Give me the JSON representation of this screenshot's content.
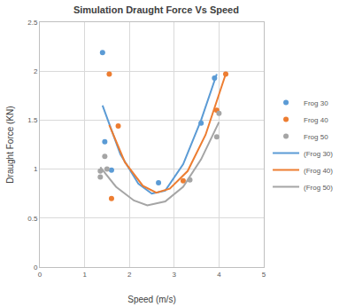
{
  "chart_data": {
    "type": "scatter",
    "title": "Simulation Draught Force Vs Speed",
    "x_label": "Speed (m/s)",
    "y_label": "Draught Force (KN)",
    "xlim": [
      0,
      5
    ],
    "xticks": [
      0,
      1,
      2,
      3,
      4,
      5
    ],
    "ylim": [
      0,
      2.5
    ],
    "yticks": [
      0,
      0.5,
      1,
      1.5,
      2,
      2.5
    ],
    "grid": true,
    "legend": "right",
    "series": [
      {
        "name": "Frog 30",
        "type": "scatter",
        "marker": "circle",
        "color": "#5b9bd5",
        "x": [
          1.4,
          1.45,
          1.6,
          2.65,
          3.6,
          3.9
        ],
        "values": [
          2.19,
          1.28,
          0.99,
          0.86,
          1.47,
          1.93
        ]
      },
      {
        "name": "Frog 40",
        "type": "scatter",
        "marker": "circle",
        "color": "#ed7d31",
        "x": [
          1.55,
          1.75,
          1.6,
          3.2,
          3.95,
          4.15
        ],
        "values": [
          1.97,
          1.44,
          0.7,
          0.88,
          1.6,
          1.97
        ]
      },
      {
        "name": "Frog 50",
        "type": "scatter",
        "marker": "circle",
        "color": "#a5a5a5",
        "x": [
          1.35,
          1.35,
          1.45,
          1.5,
          3.35,
          3.95,
          4.0
        ],
        "values": [
          0.92,
          0.98,
          1.13,
          1.0,
          0.89,
          1.33,
          1.57
        ]
      },
      {
        "name": "(Frog 30)",
        "type": "line",
        "line_style": "solid",
        "color": "#5b9bd5",
        "x": [
          1.4,
          1.8,
          2.2,
          2.5,
          2.8,
          3.2,
          3.6,
          3.95
        ],
        "values": [
          1.65,
          1.15,
          0.85,
          0.75,
          0.78,
          1.05,
          1.5,
          1.97
        ]
      },
      {
        "name": "(Frog 40)",
        "type": "line",
        "line_style": "solid",
        "color": "#ed7d31",
        "x": [
          1.55,
          1.9,
          2.3,
          2.6,
          2.9,
          3.3,
          3.7,
          4.15
        ],
        "values": [
          1.45,
          1.07,
          0.83,
          0.76,
          0.8,
          0.98,
          1.35,
          1.97
        ]
      },
      {
        "name": "(Frog 50)",
        "type": "line",
        "line_style": "solid",
        "color": "#a5a5a5",
        "x": [
          1.35,
          1.7,
          2.1,
          2.4,
          2.8,
          3.2,
          3.6,
          4.0
        ],
        "values": [
          1.02,
          0.82,
          0.68,
          0.63,
          0.67,
          0.82,
          1.1,
          1.48
        ]
      }
    ]
  }
}
